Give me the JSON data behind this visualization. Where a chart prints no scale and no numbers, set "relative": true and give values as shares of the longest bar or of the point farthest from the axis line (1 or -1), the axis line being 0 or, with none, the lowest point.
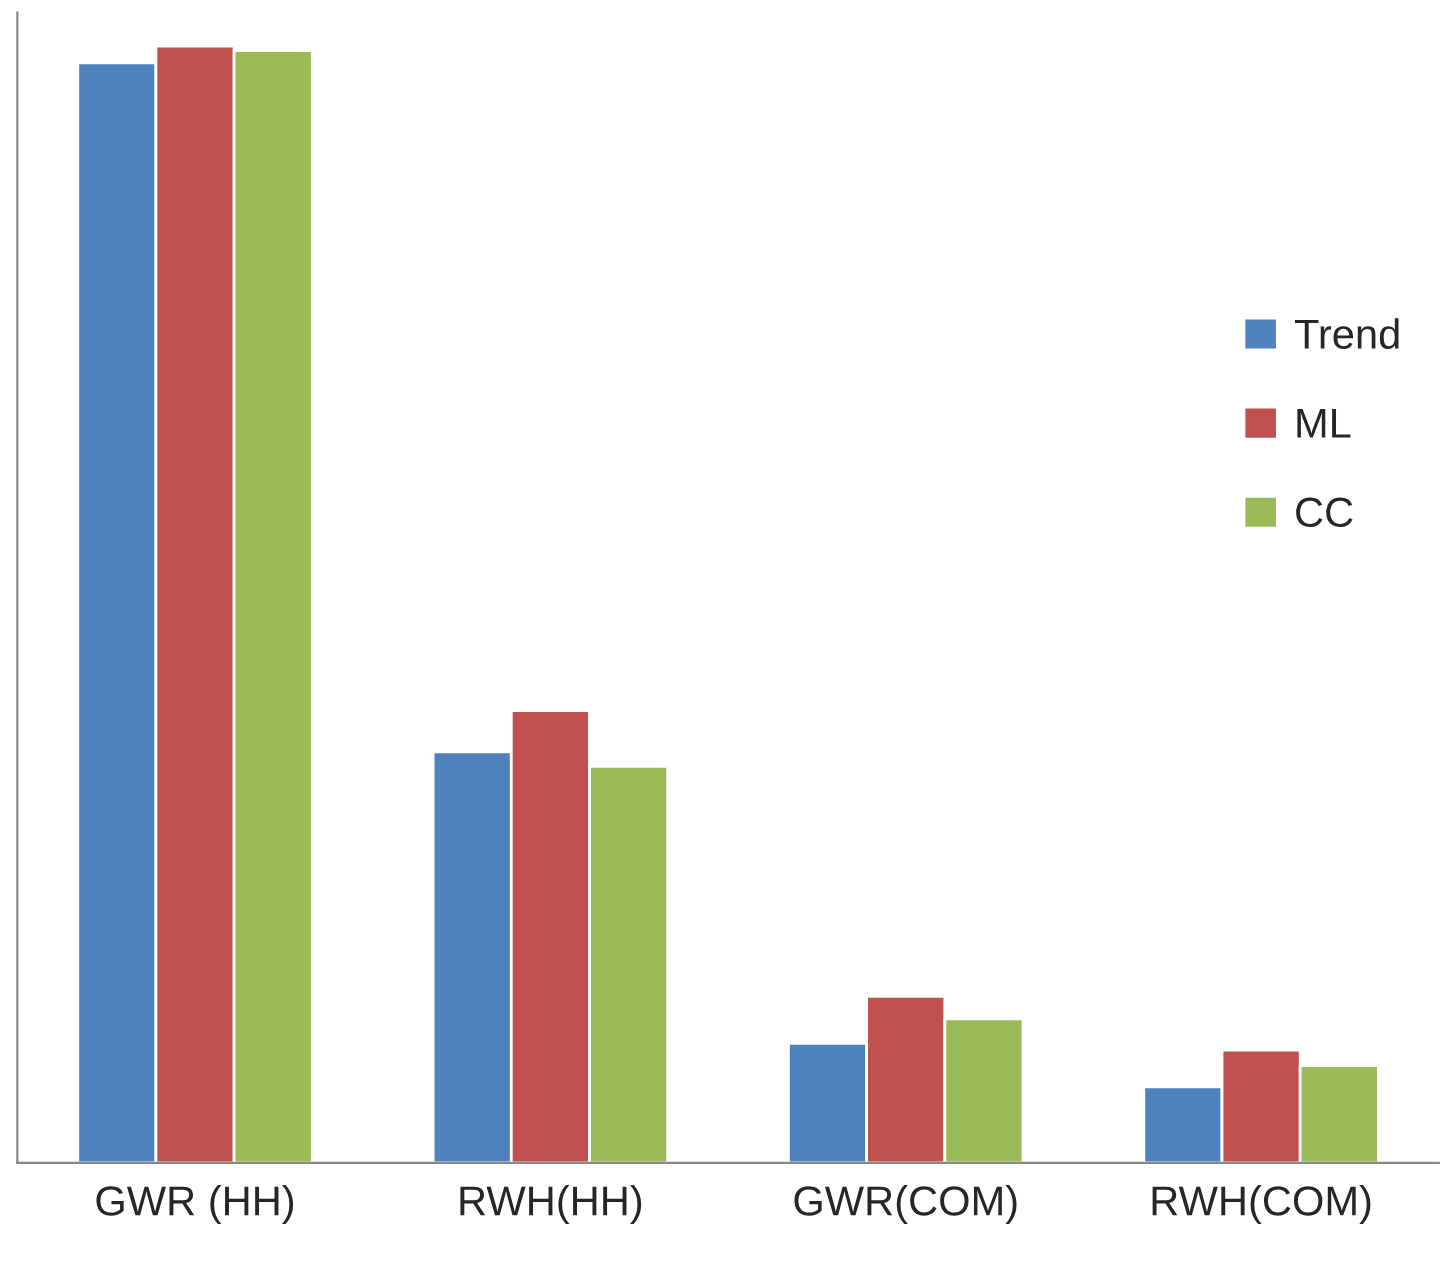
{
  "chart_data": {
    "type": "bar",
    "relative": true,
    "categories": [
      "GWR (HH)",
      "RWH(HH)",
      "GWR(COM)",
      "RWH(COM)"
    ],
    "series": [
      {
        "name": "Trend",
        "color": "#4f81bd",
        "values": [
          0.985,
          0.368,
          0.107,
          0.068
        ]
      },
      {
        "name": "ML",
        "color": "#c0504d",
        "values": [
          1,
          0.405,
          0.149,
          0.101
        ]
      },
      {
        "name": "CC",
        "color": "#9bbb59",
        "values": [
          0.996,
          0.355,
          0.129,
          0.087
        ]
      }
    ],
    "legend": "right",
    "grid": false
  }
}
